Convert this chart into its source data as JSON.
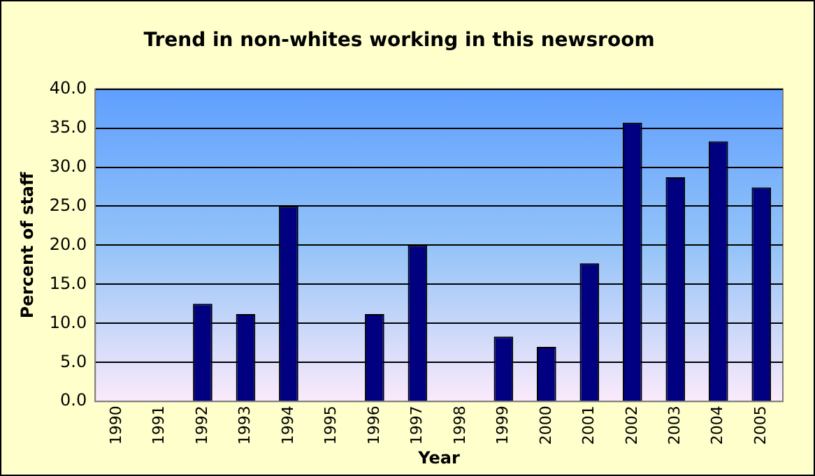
{
  "chart_data": {
    "type": "bar",
    "title": "Trend in non-whites working in this newsroom",
    "xlabel": "Year",
    "ylabel": "Percent of staff",
    "categories": [
      "1990",
      "1991",
      "1992",
      "1993",
      "1994",
      "1995",
      "1996",
      "1997",
      "1998",
      "1999",
      "2000",
      "2001",
      "2002",
      "2003",
      "2004",
      "2005"
    ],
    "values": [
      null,
      null,
      12.5,
      11.2,
      25.0,
      null,
      11.2,
      20.0,
      null,
      8.3,
      7.0,
      17.7,
      35.7,
      28.7,
      33.3,
      27.4
    ],
    "color": "#000080",
    "ylim": [
      0,
      40
    ],
    "yticks": [
      {
        "value": 0,
        "label": "0.0"
      },
      {
        "value": 5,
        "label": "5.0"
      },
      {
        "value": 10,
        "label": "10.0"
      },
      {
        "value": 15,
        "label": "15.0"
      },
      {
        "value": 20,
        "label": "20.0"
      },
      {
        "value": 25,
        "label": "25.0"
      },
      {
        "value": 30,
        "label": "30.0"
      },
      {
        "value": 35,
        "label": "35.0"
      },
      {
        "value": 40,
        "label": "40.0"
      }
    ],
    "grid": "y",
    "legend": false
  }
}
